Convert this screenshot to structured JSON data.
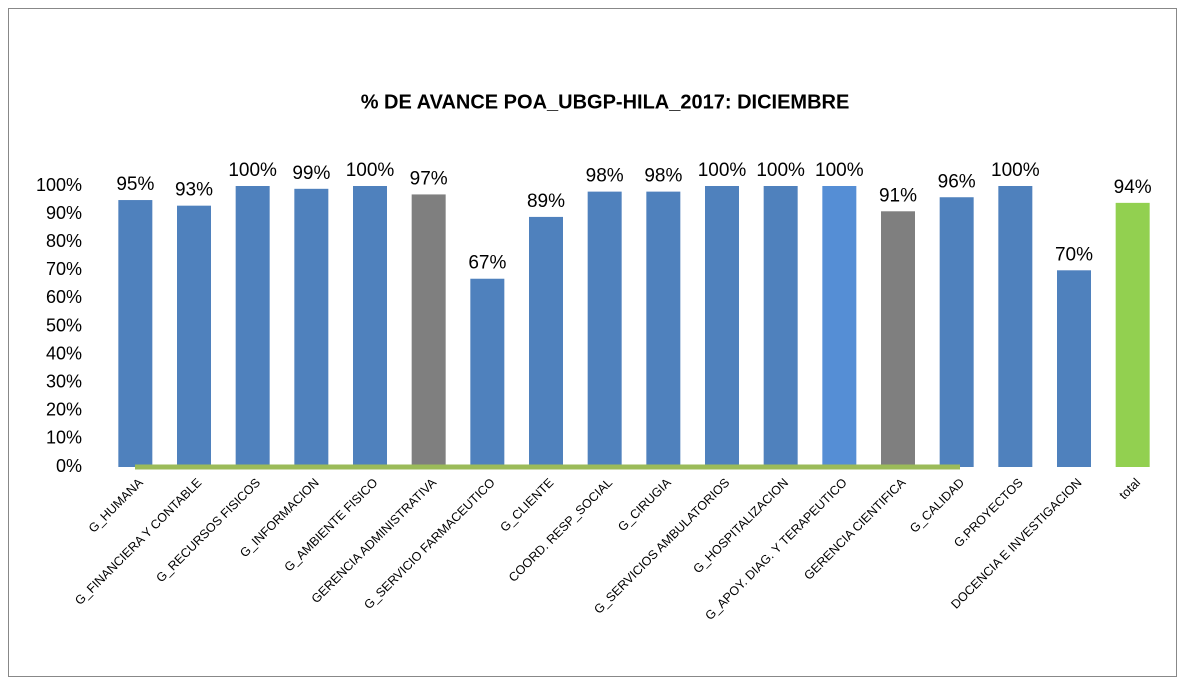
{
  "chart_data": {
    "type": "bar",
    "title": "% DE AVANCE POA_UBGP-HILA_2017: DICIEMBRE",
    "categories": [
      "G_HUMANA",
      "G_FINANCIERA Y CONTABLE",
      "G_RECURSOS FISICOS",
      "G_INFORMACION",
      "G_AMBIENTE FISICO",
      "GERENCIA ADMINISTRATIVA",
      "G_SERVICIO FARMACEUTICO",
      "G_CLIENTE",
      "COORD. RESP_SOCIAL",
      "G_CIRUGIA",
      "G_SERVICIOS AMBULATORIOS",
      "G_HOSPITALIZACION",
      "G_APOY. DIAG. Y TERAPEUTICO",
      "GERENCIA CIENTIFICA",
      "G_CALIDAD",
      "G.PROYECTOS",
      "DOCENCIA E INVESTIGACION",
      "total"
    ],
    "values": [
      95,
      93,
      100,
      99,
      100,
      97,
      67,
      89,
      98,
      98,
      100,
      100,
      100,
      91,
      96,
      100,
      70,
      94
    ],
    "value_labels": [
      "95%",
      "93%",
      "100%",
      "99%",
      "100%",
      "97%",
      "67%",
      "89%",
      "98%",
      "98%",
      "100%",
      "100%",
      "100%",
      "91%",
      "96%",
      "100%",
      "70%",
      "94%"
    ],
    "colors": [
      "#4f81bd",
      "#4f81bd",
      "#4f81bd",
      "#4f81bd",
      "#4f81bd",
      "#7f7f7f",
      "#4f81bd",
      "#4f81bd",
      "#4f81bd",
      "#4f81bd",
      "#4f81bd",
      "#4f81bd",
      "#558ed5",
      "#7f7f7f",
      "#4f81bd",
      "#4f81bd",
      "#4f81bd",
      "#92d050"
    ],
    "ylim": [
      0,
      100
    ],
    "yticks": [
      {
        "value": 0,
        "label": "0%"
      },
      {
        "value": 10,
        "label": "10%"
      },
      {
        "value": 20,
        "label": "20%"
      },
      {
        "value": 30,
        "label": "30%"
      },
      {
        "value": 40,
        "label": "40%"
      },
      {
        "value": 50,
        "label": "50%"
      },
      {
        "value": 60,
        "label": "60%"
      },
      {
        "value": 70,
        "label": "70%"
      },
      {
        "value": 80,
        "label": "80%"
      },
      {
        "value": 90,
        "label": "90%"
      },
      {
        "value": 100,
        "label": "100%"
      }
    ],
    "grid": false
  }
}
